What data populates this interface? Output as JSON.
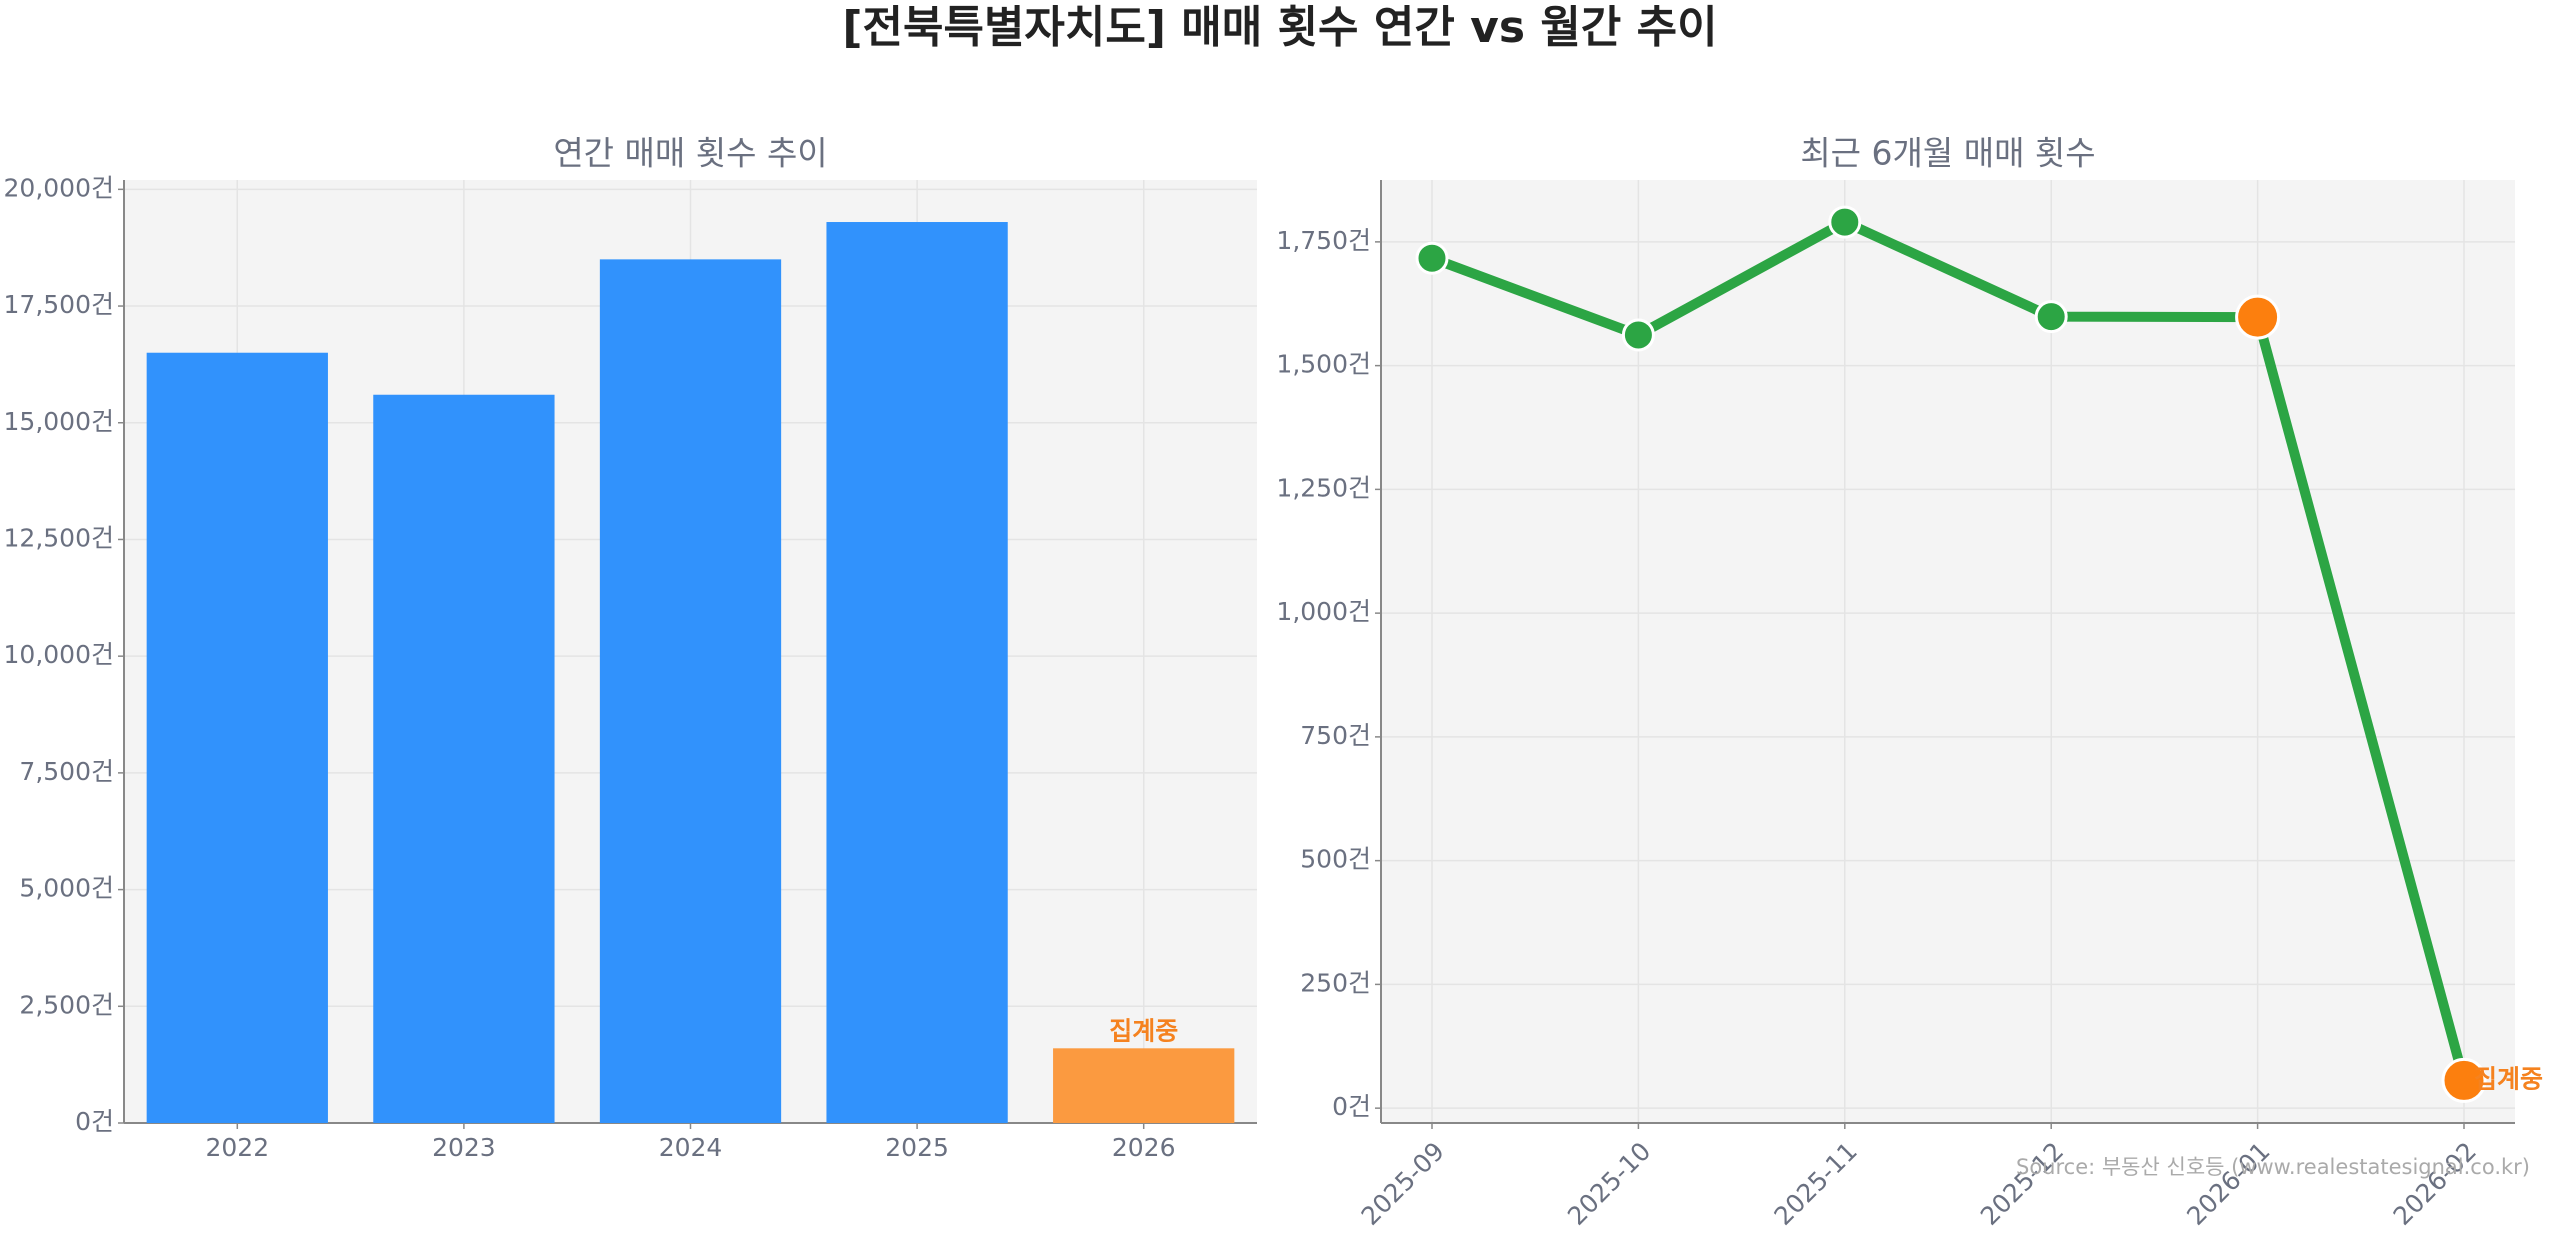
{
  "title": "[전북특별자치도] 매매 횟수 연간 vs 월간 추이",
  "source": "Source: 부동산 신호등 (www.realestatesignal.co.kr)",
  "chart_data": [
    {
      "type": "bar",
      "title": "연간 매매 횟수 추이",
      "categories": [
        "2022",
        "2023",
        "2024",
        "2025",
        "2026"
      ],
      "values": [
        16500,
        15600,
        18500,
        19300,
        1600
      ],
      "colors": [
        "#3192fc",
        "#3192fc",
        "#3192fc",
        "#3192fc",
        "#fb9a40"
      ],
      "ylim": [
        0,
        20200
      ],
      "yticks": [
        {
          "value": 0,
          "label": "0건"
        },
        {
          "value": 2500,
          "label": "2,500건"
        },
        {
          "value": 5000,
          "label": "5,000건"
        },
        {
          "value": 7500,
          "label": "7,500건"
        },
        {
          "value": 10000,
          "label": "10,000건"
        },
        {
          "value": 12500,
          "label": "12,500건"
        },
        {
          "value": 15000,
          "label": "15,000건"
        },
        {
          "value": 17500,
          "label": "17,500건"
        },
        {
          "value": 20000,
          "label": "20,000건"
        }
      ],
      "annotations": [
        {
          "text": "집계중",
          "x": "2026",
          "color": "#f5821f"
        }
      ],
      "grid": true
    },
    {
      "type": "line",
      "title": "최근 6개월 매매 횟수",
      "categories": [
        "2025-09",
        "2025-10",
        "2025-11",
        "2025-12",
        "2026-01",
        "2026-02"
      ],
      "values": [
        1717,
        1562,
        1790,
        1599,
        1598,
        56
      ],
      "color": "#2ca544",
      "point_colors": [
        "#2ca544",
        "#2ca544",
        "#2ca544",
        "#2ca544",
        "#fc7f0e",
        "#fc7f0e"
      ],
      "ylim": [
        -30,
        1875
      ],
      "yticks": [
        {
          "value": 0,
          "label": "0건"
        },
        {
          "value": 250,
          "label": "250건"
        },
        {
          "value": 500,
          "label": "500건"
        },
        {
          "value": 750,
          "label": "750건"
        },
        {
          "value": 1000,
          "label": "1,000건"
        },
        {
          "value": 1250,
          "label": "1,250건"
        },
        {
          "value": 1500,
          "label": "1,500건"
        },
        {
          "value": 1750,
          "label": "1,750건"
        }
      ],
      "annotations": [
        {
          "text": "집계중",
          "x": "2026-02",
          "color": "#f5821f"
        }
      ],
      "grid": true
    }
  ]
}
